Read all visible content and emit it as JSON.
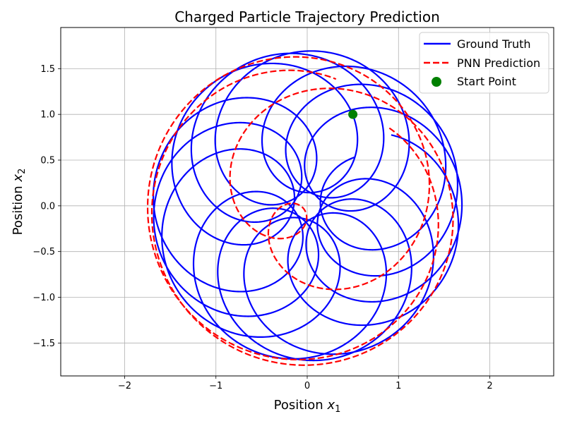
{
  "chart_data": {
    "type": "line",
    "title": "Charged Particle Trajectory Prediction",
    "xlabel": {
      "text": "Position ",
      "sym": "x",
      "sub": "1"
    },
    "ylabel": {
      "text": "Position ",
      "sym": "x",
      "sub": "2"
    },
    "xlim": [
      -2.7,
      2.7
    ],
    "ylim": [
      -1.86,
      1.95
    ],
    "xticks": [
      -2,
      -1,
      0,
      1,
      2
    ],
    "yticks": [
      -1.5,
      -1.0,
      -0.5,
      0.0,
      0.5,
      1.0,
      1.5
    ],
    "xtick_labels": [
      "−2",
      "−1",
      "0",
      "1",
      "2"
    ],
    "ytick_labels": [
      "−1.5",
      "−1.0",
      "−0.5",
      "0.0",
      "0.5",
      "1.0",
      "1.5"
    ],
    "grid": true,
    "legend_position": "top-right",
    "series": [
      {
        "name": "Ground Truth",
        "style": "solid",
        "color": "#0000ff",
        "model": "rosette",
        "R": 0.92,
        "r": 0.775,
        "omega_center": -0.19,
        "omega_spin": 1.0,
        "t_range": [
          0,
          100
        ],
        "samples": 5000
      },
      {
        "name": "PNN Prediction",
        "style": "dashed",
        "color": "#ff0000",
        "model": "rosette",
        "R": 0.9,
        "r": 0.85,
        "omega_center": -0.65,
        "omega_spin": 1.0,
        "t_range": [
          0,
          26
        ],
        "samples": 1600
      },
      {
        "name": "Start Point",
        "style": "scatter",
        "color": "#008000",
        "points": [
          [
            0.5,
            1.0
          ]
        ]
      }
    ]
  }
}
